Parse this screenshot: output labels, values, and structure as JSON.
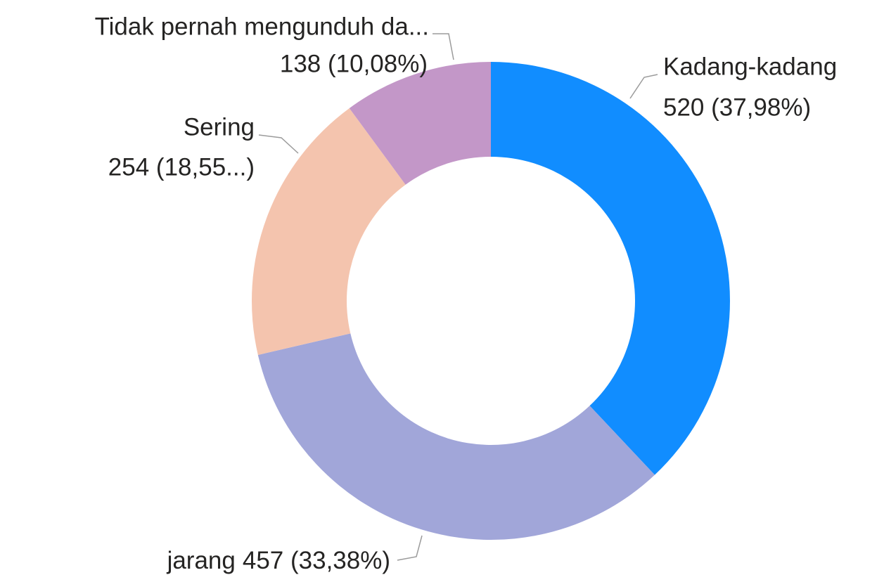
{
  "chart_data": {
    "type": "donut",
    "categories": [
      "Kadang-kadang",
      "jarang",
      "Sering",
      "Tidak pernah mengunduh da..."
    ],
    "values": [
      520,
      457,
      254,
      138
    ],
    "value_labels": [
      "520 (37,98%)",
      "457 (33,38%)",
      "254 (18,55...)",
      "138 (10,08%)"
    ],
    "colors": [
      "#118dff",
      "#a1a6d9",
      "#f4c4ae",
      "#c397c8"
    ]
  }
}
